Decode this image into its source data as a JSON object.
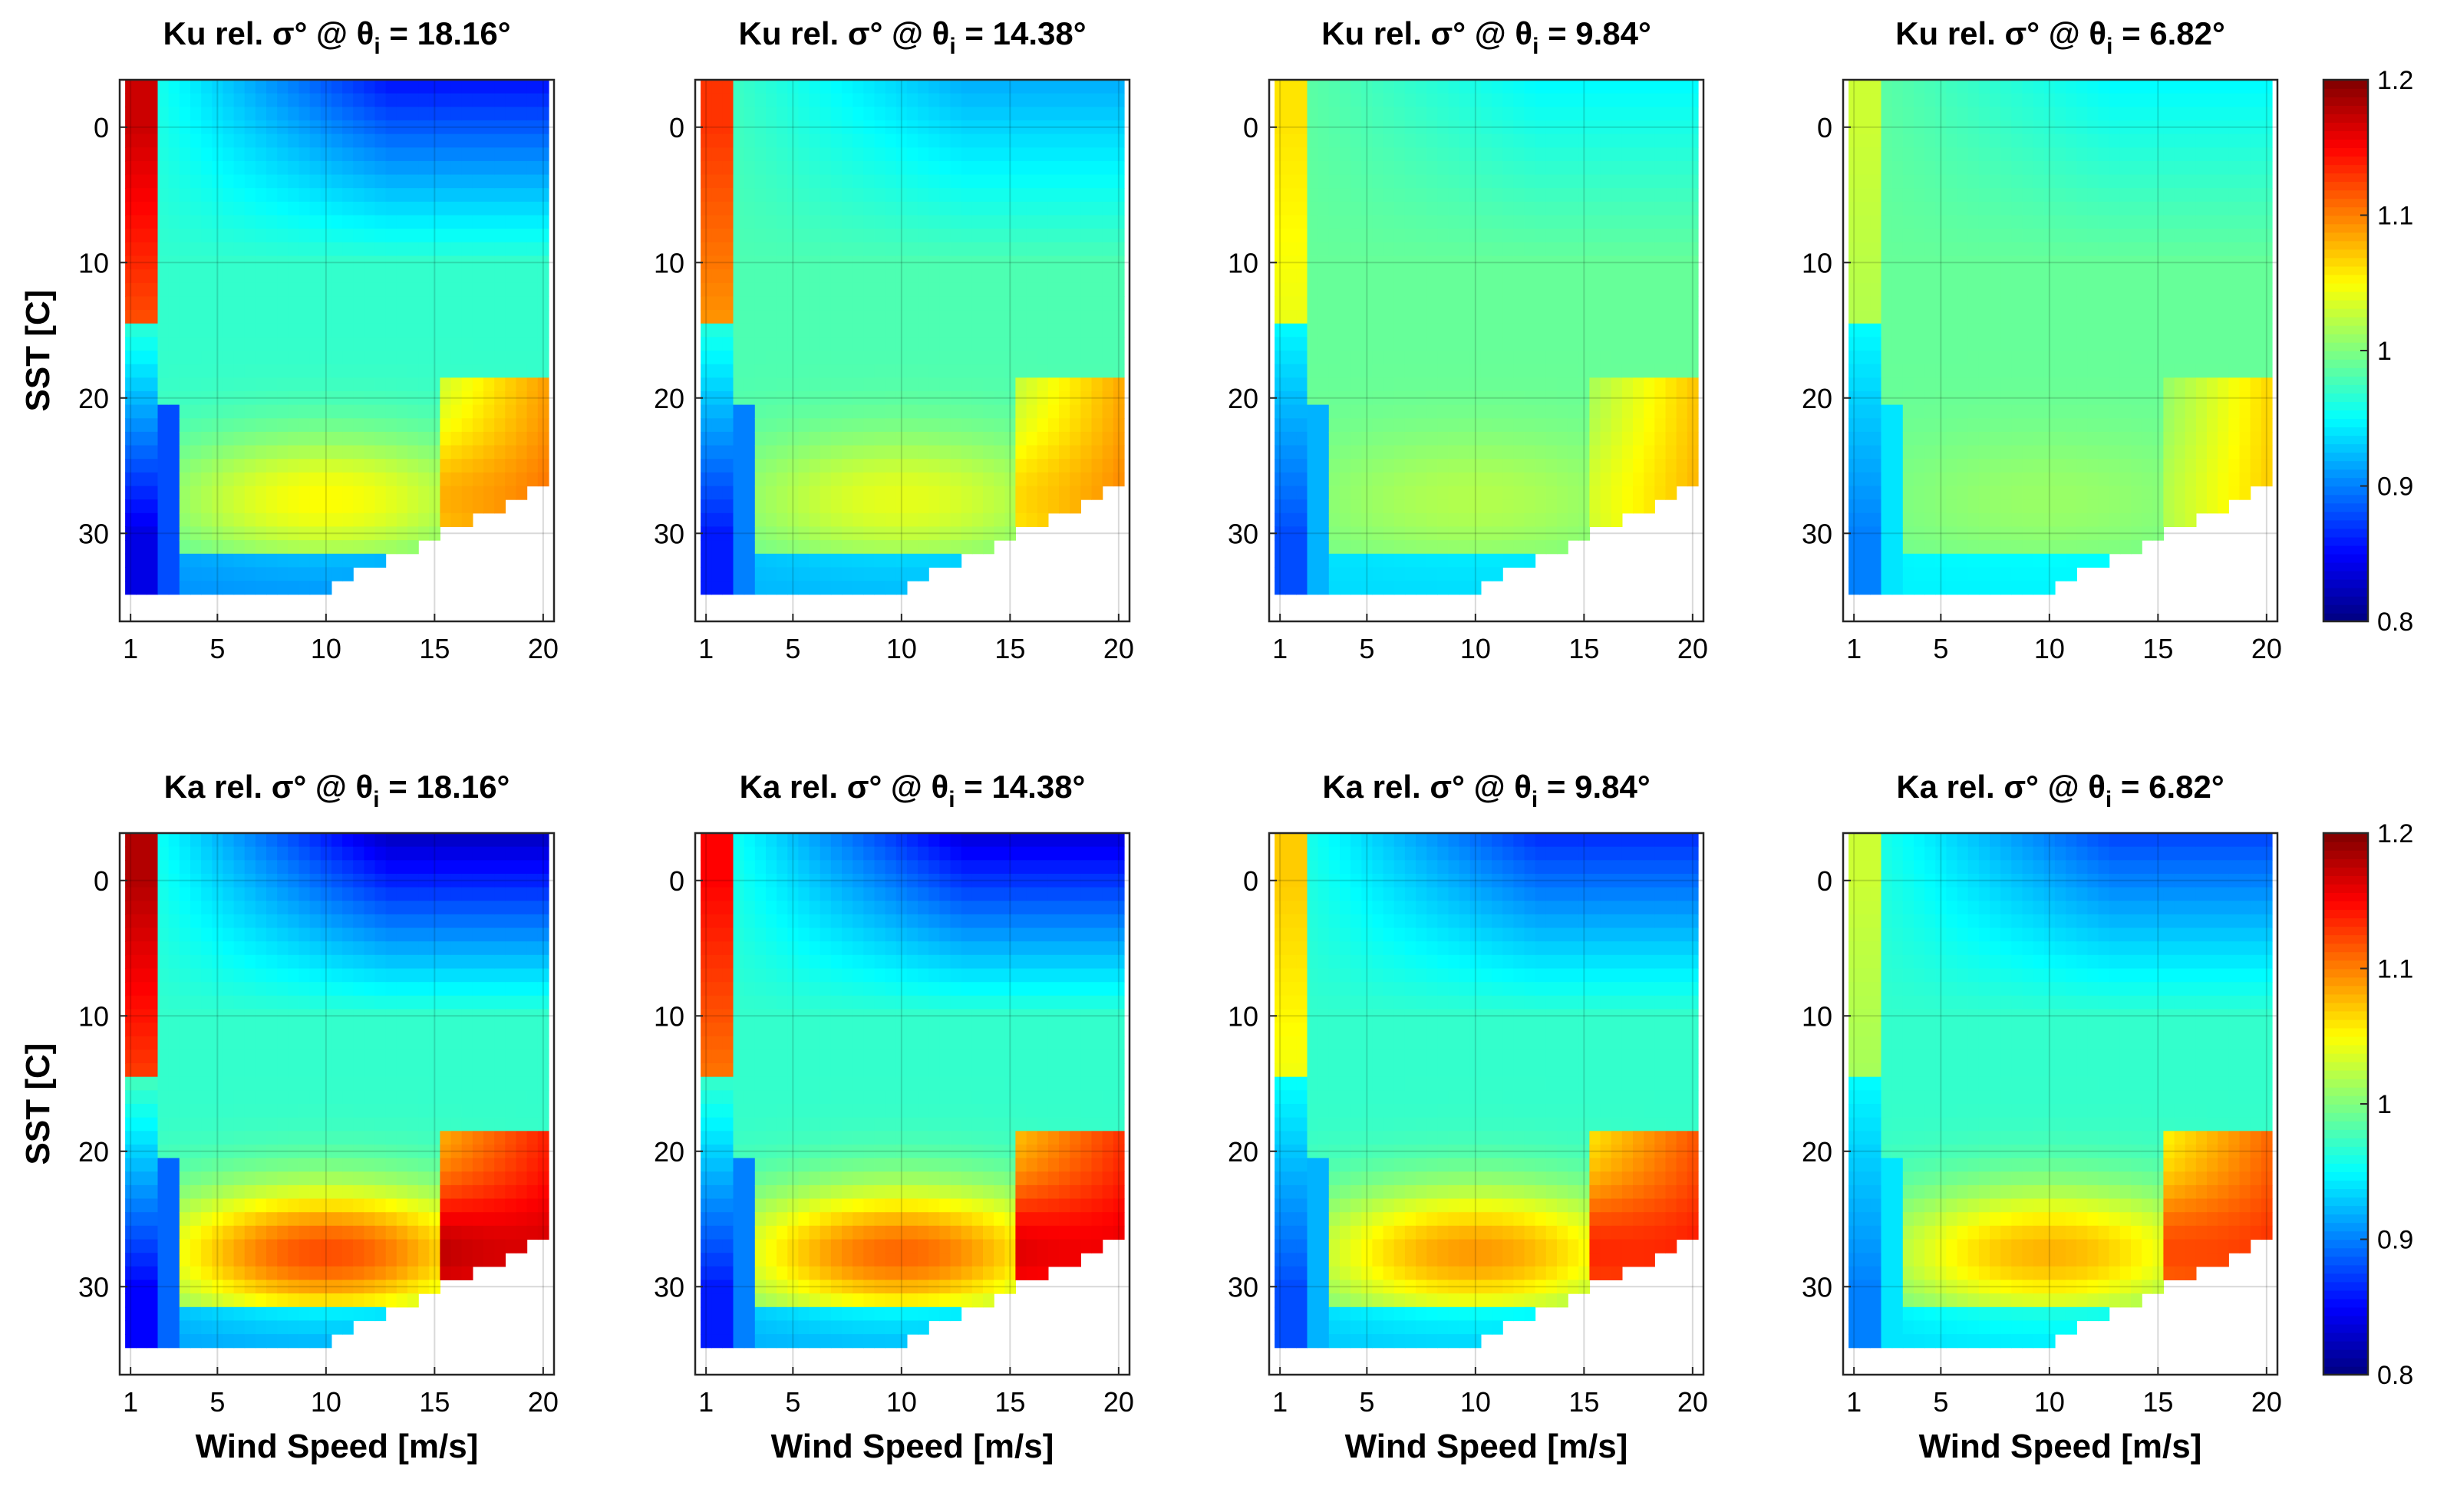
{
  "chart_data": {
    "type": "heatmap",
    "figure_description_free": true,
    "colormap": "jet",
    "x": {
      "label": "Wind Speed [m/s]",
      "range": [
        0.5,
        20.5
      ],
      "ticks": [
        1,
        5,
        10,
        15,
        20
      ],
      "tick_labels": [
        "1",
        "5",
        "10",
        "15",
        "20"
      ]
    },
    "y": {
      "label": "SST [C]",
      "range": [
        -3.5,
        36.5
      ],
      "direction": "reversed",
      "ticks": [
        0,
        10,
        20,
        30
      ],
      "tick_labels": [
        "0",
        "10",
        "20",
        "30"
      ]
    },
    "grid": true,
    "colorbar": {
      "range": [
        0.8,
        1.2
      ],
      "ticks": [
        0.8,
        0.9,
        1.0,
        1.1,
        1.2
      ],
      "tick_labels": [
        "0.8",
        "0.9",
        "1",
        "1.1",
        "1.2"
      ]
    },
    "panels": [
      {
        "band": "Ku",
        "theta": "18.16°",
        "title_prefix": "Ku rel. σ° @ θ",
        "title_sub": "i",
        "title_suffix": " =  18.16°",
        "low_wind": 1.17,
        "warm": 1.05,
        "cold_high_wind": 0.86,
        "base": 0.97,
        "edge_low": 0.84
      },
      {
        "band": "Ku",
        "theta": "14.38°",
        "title_prefix": "Ku rel. σ° @ θ",
        "title_sub": "i",
        "title_suffix": " =  14.38°",
        "low_wind": 1.13,
        "warm": 1.04,
        "cold_high_wind": 0.92,
        "base": 0.98,
        "edge_low": 0.86
      },
      {
        "band": "Ku",
        "theta": "9.84°",
        "title_prefix": "Ku rel. σ° @ θ",
        "title_sub": "i",
        "title_suffix": " =  9.84°",
        "low_wind": 1.06,
        "warm": 1.02,
        "cold_high_wind": 0.95,
        "base": 0.99,
        "edge_low": 0.88
      },
      {
        "band": "Ku",
        "theta": "6.82°",
        "title_prefix": "Ku rel. σ° @ θ",
        "title_sub": "i",
        "title_suffix": " =  6.82°",
        "low_wind": 1.03,
        "warm": 1.01,
        "cold_high_wind": 0.95,
        "base": 0.99,
        "edge_low": 0.9
      },
      {
        "band": "Ka",
        "theta": "18.16°",
        "title_prefix": "Ka rel. σ° @ θ",
        "title_sub": "i",
        "title_suffix": " =  18.16°",
        "low_wind": 1.18,
        "warm": 1.12,
        "cold_high_wind": 0.83,
        "base": 0.97,
        "edge_low": 0.85
      },
      {
        "band": "Ka",
        "theta": "14.38°",
        "title_prefix": "Ka rel. σ° @ θ",
        "title_sub": "i",
        "title_suffix": " =  14.38°",
        "low_wind": 1.15,
        "warm": 1.11,
        "cold_high_wind": 0.84,
        "base": 0.97,
        "edge_low": 0.86
      },
      {
        "band": "Ka",
        "theta": "9.84°",
        "title_prefix": "Ka rel. σ° @ θ",
        "title_sub": "i",
        "title_suffix": " =  9.84°",
        "low_wind": 1.07,
        "warm": 1.09,
        "cold_high_wind": 0.87,
        "base": 0.97,
        "edge_low": 0.88
      },
      {
        "band": "Ka",
        "theta": "6.82°",
        "title_prefix": "Ka rel. σ° @ θ",
        "title_sub": "i",
        "title_suffix": " =  6.82°",
        "low_wind": 1.03,
        "warm": 1.08,
        "cold_high_wind": 0.88,
        "base": 0.97,
        "edge_low": 0.9
      }
    ]
  }
}
